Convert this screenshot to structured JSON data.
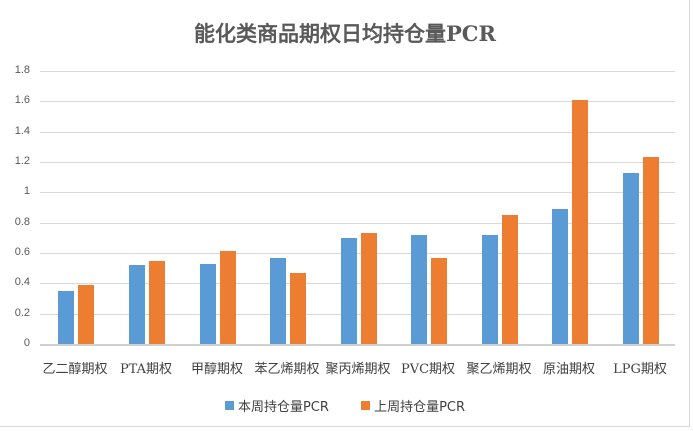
{
  "chart_data": {
    "type": "bar",
    "title": "能化类商品期权日均持仓量PCR",
    "xlabel": "",
    "ylabel": "",
    "ylim": [
      0,
      1.8
    ],
    "yticks": [
      "0",
      "0.2",
      "0.4",
      "0.6",
      "0.8",
      "1",
      "1.2",
      "1.4",
      "1.6",
      "1.8"
    ],
    "grid": true,
    "legend_position": "bottom",
    "categories": [
      "乙二醇期权",
      "PTA期权",
      "甲醇期权",
      "苯乙烯期权",
      "聚丙烯期权",
      "PVC期权",
      "聚乙烯期权",
      "原油期权",
      "LPG期权"
    ],
    "series": [
      {
        "name": "本周持仓量PCR",
        "color": "#5b9bd5",
        "values": [
          0.35,
          0.52,
          0.53,
          0.57,
          0.7,
          0.72,
          0.72,
          0.89,
          1.13
        ]
      },
      {
        "name": "上周持仓量PCR",
        "color": "#ed7d31",
        "values": [
          0.39,
          0.55,
          0.61,
          0.47,
          0.73,
          0.57,
          0.85,
          1.61,
          1.23
        ]
      }
    ]
  }
}
